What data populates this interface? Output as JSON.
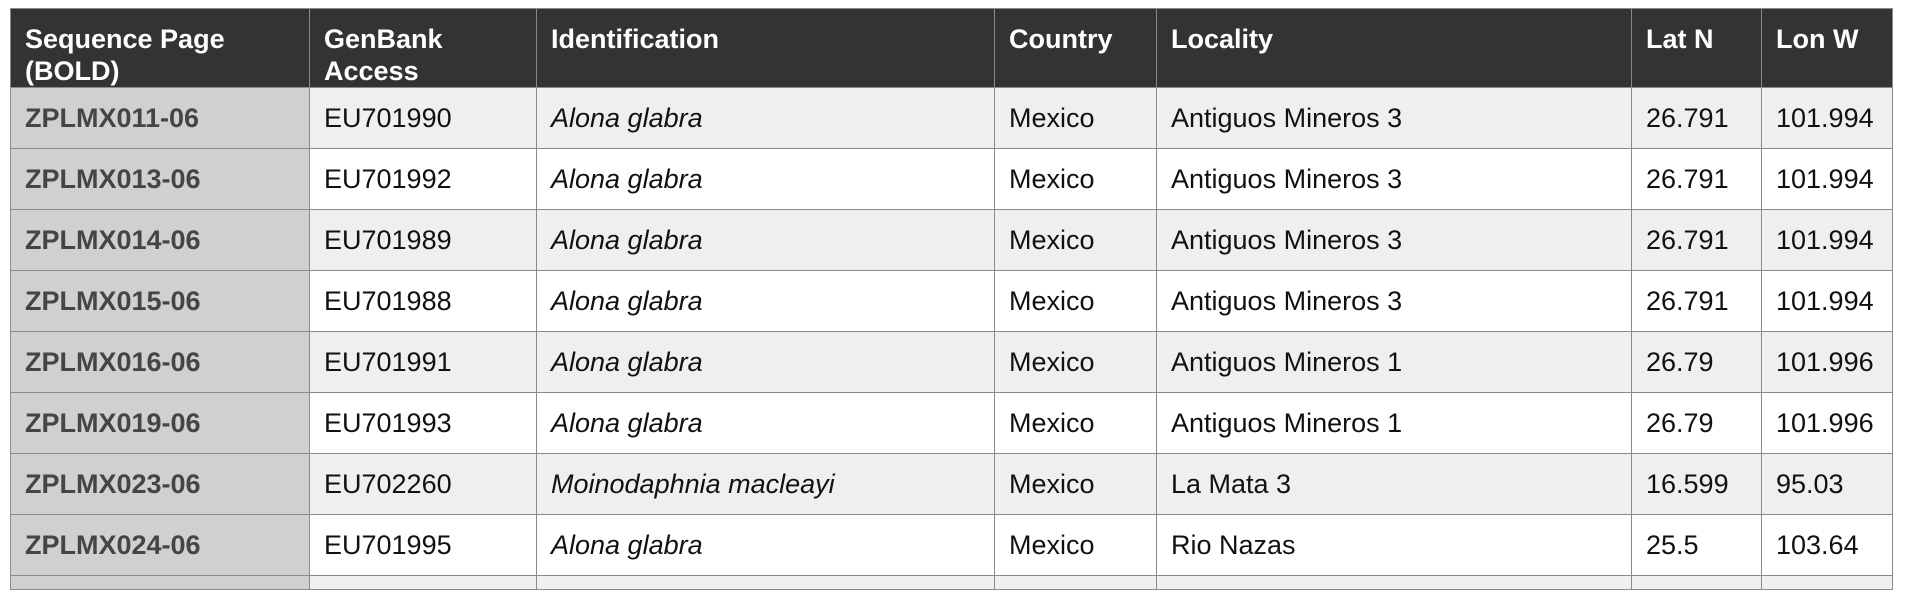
{
  "table": {
    "headers": [
      "Sequence Page (BOLD)",
      "GenBank Access",
      "Identification",
      "Country",
      "Locality",
      "Lat N",
      "Lon W"
    ],
    "rows": [
      [
        "ZPLMX011-06",
        "EU701990",
        "Alona glabra",
        "Mexico",
        "Antiguos Mineros 3",
        "26.791",
        "101.994"
      ],
      [
        "ZPLMX013-06",
        "EU701992",
        "Alona glabra",
        "Mexico",
        "Antiguos Mineros 3",
        "26.791",
        "101.994"
      ],
      [
        "ZPLMX014-06",
        "EU701989",
        "Alona glabra",
        "Mexico",
        "Antiguos Mineros 3",
        "26.791",
        "101.994"
      ],
      [
        "ZPLMX015-06",
        "EU701988",
        "Alona glabra",
        "Mexico",
        "Antiguos Mineros 3",
        "26.791",
        "101.994"
      ],
      [
        "ZPLMX016-06",
        "EU701991",
        "Alona glabra",
        "Mexico",
        "Antiguos Mineros 1",
        "26.79",
        "101.996"
      ],
      [
        "ZPLMX019-06",
        "EU701993",
        "Alona glabra",
        "Mexico",
        "Antiguos Mineros 1",
        "26.79",
        "101.996"
      ],
      [
        "ZPLMX023-06",
        "EU702260",
        "Moinodaphnia macleayi",
        "Mexico",
        "La Mata 3",
        "16.599",
        "95.03"
      ],
      [
        "ZPLMX024-06",
        "EU701995",
        "Alona glabra",
        "Mexico",
        "Rio Nazas",
        "25.5",
        "103.64"
      ]
    ]
  },
  "colors": {
    "header_bg": "#333333",
    "header_text": "#ffffff",
    "first_col_bg": "#d0d0d0",
    "row_alt_bg": "#efefef",
    "border": "#8a8a8a"
  }
}
